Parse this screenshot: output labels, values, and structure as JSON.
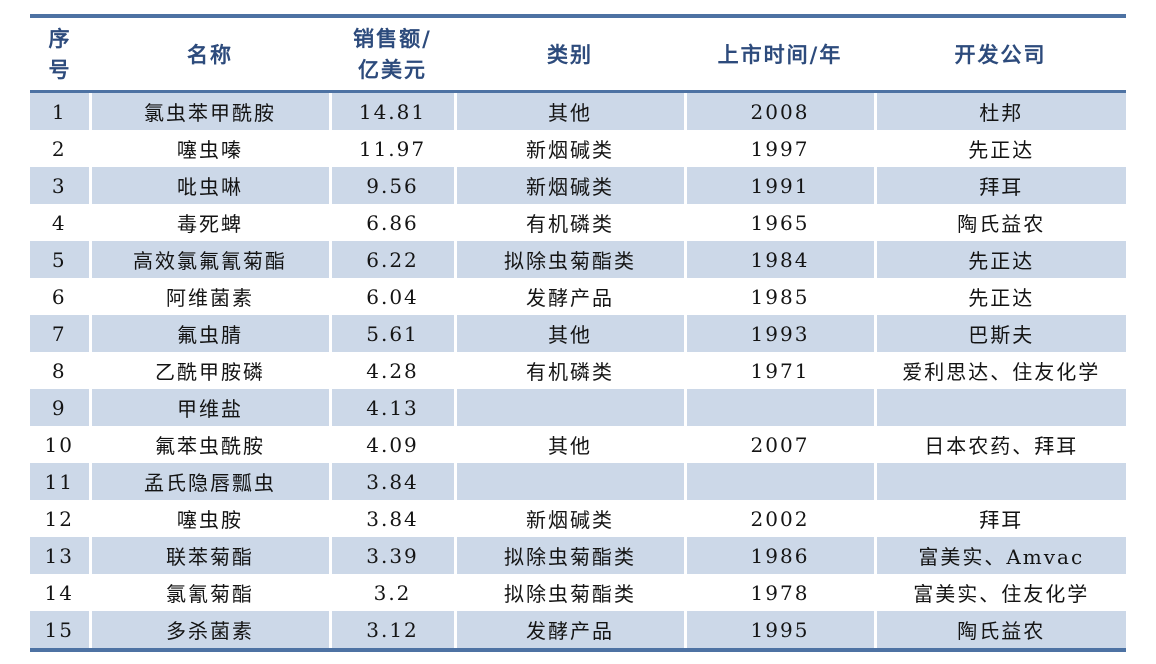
{
  "theme": {
    "border_color": "#4d72a3",
    "header_text_color": "#2d4b7c",
    "shaded_row_color": "#ccd8e8",
    "plain_row_color": "#ffffff",
    "body_text_color": "#141414"
  },
  "table": {
    "columns": [
      {
        "id": "index",
        "label_lines": [
          "序",
          "号"
        ]
      },
      {
        "id": "name",
        "label_lines": [
          "名称"
        ]
      },
      {
        "id": "sales",
        "label_lines": [
          "销售额/",
          "亿美元"
        ]
      },
      {
        "id": "category",
        "label_lines": [
          "类别"
        ]
      },
      {
        "id": "year",
        "label_lines": [
          "上市时间/年"
        ]
      },
      {
        "id": "developer",
        "label_lines": [
          "开发公司"
        ]
      }
    ],
    "rows": [
      {
        "index": "1",
        "name": "氯虫苯甲酰胺",
        "sales": "14.81",
        "category": "其他",
        "year": "2008",
        "developer": "杜邦"
      },
      {
        "index": "2",
        "name": "噻虫嗪",
        "sales": "11.97",
        "category": "新烟碱类",
        "year": "1997",
        "developer": "先正达"
      },
      {
        "index": "3",
        "name": "吡虫啉",
        "sales": "9.56",
        "category": "新烟碱类",
        "year": "1991",
        "developer": "拜耳"
      },
      {
        "index": "4",
        "name": "毒死蜱",
        "sales": "6.86",
        "category": "有机磷类",
        "year": "1965",
        "developer": "陶氏益农"
      },
      {
        "index": "5",
        "name": "高效氯氟氰菊酯",
        "sales": "6.22",
        "category": "拟除虫菊酯类",
        "year": "1984",
        "developer": "先正达"
      },
      {
        "index": "6",
        "name": "阿维菌素",
        "sales": "6.04",
        "category": "发酵产品",
        "year": "1985",
        "developer": "先正达"
      },
      {
        "index": "7",
        "name": "氟虫腈",
        "sales": "5.61",
        "category": "其他",
        "year": "1993",
        "developer": "巴斯夫"
      },
      {
        "index": "8",
        "name": "乙酰甲胺磷",
        "sales": "4.28",
        "category": "有机磷类",
        "year": "1971",
        "developer": "爱利思达、住友化学"
      },
      {
        "index": "9",
        "name": "甲维盐",
        "sales": "4.13",
        "category": "",
        "year": "",
        "developer": ""
      },
      {
        "index": "10",
        "name": "氟苯虫酰胺",
        "sales": "4.09",
        "category": "其他",
        "year": "2007",
        "developer": "日本农药、拜耳"
      },
      {
        "index": "11",
        "name": "孟氏隐唇瓢虫",
        "sales": "3.84",
        "category": "",
        "year": "",
        "developer": ""
      },
      {
        "index": "12",
        "name": "噻虫胺",
        "sales": "3.84",
        "category": "新烟碱类",
        "year": "2002",
        "developer": "拜耳"
      },
      {
        "index": "13",
        "name": "联苯菊酯",
        "sales": "3.39",
        "category": "拟除虫菊酯类",
        "year": "1986",
        "developer": "富美实、Amvac"
      },
      {
        "index": "14",
        "name": "氯氰菊酯",
        "sales": "3.2",
        "category": "拟除虫菊酯类",
        "year": "1978",
        "developer": "富美实、住友化学"
      },
      {
        "index": "15",
        "name": "多杀菌素",
        "sales": "3.12",
        "category": "发酵产品",
        "year": "1995",
        "developer": "陶氏益农"
      }
    ]
  }
}
